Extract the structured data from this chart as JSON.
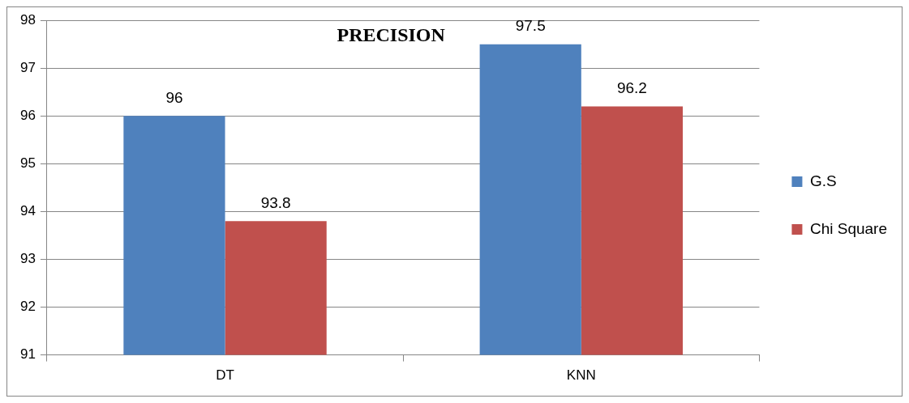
{
  "chart_data": {
    "type": "bar",
    "title": "PRECISION",
    "categories": [
      "DT",
      "KNN"
    ],
    "series": [
      {
        "name": "G.S",
        "color": "#4f81bd",
        "values": [
          96,
          97.5
        ]
      },
      {
        "name": "Chi Square",
        "color": "#c0504d",
        "values": [
          93.8,
          96.2
        ]
      }
    ],
    "ylim": [
      91,
      98
    ],
    "yticks": [
      91,
      92,
      93,
      94,
      95,
      96,
      97,
      98
    ],
    "grid": "y",
    "legend": "right",
    "data_labels": true
  }
}
